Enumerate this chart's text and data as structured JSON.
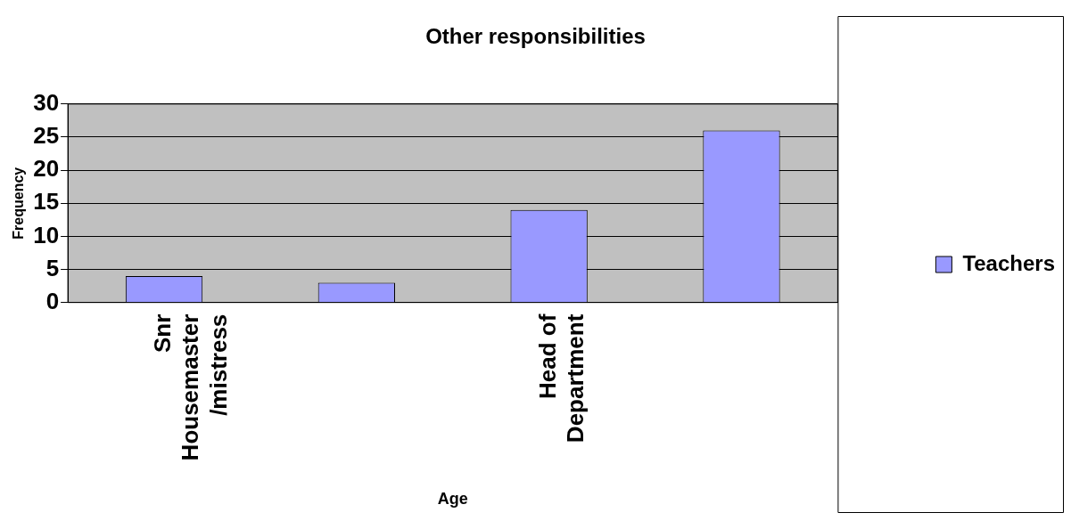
{
  "chart_data": {
    "type": "bar",
    "title": "Other responsibilities",
    "xlabel": "Age",
    "ylabel": "Frequency",
    "categories": [
      "Snr Housemaster /mistress",
      null,
      "Head of Department",
      null
    ],
    "series": [
      {
        "name": "Teachers",
        "color": "#9999ff",
        "values": [
          4,
          3,
          14,
          26
        ]
      }
    ],
    "ylim": [
      0,
      30
    ],
    "yticks": [
      0,
      5,
      10,
      15,
      20,
      25,
      30
    ],
    "grid": "y",
    "legend": "right"
  }
}
